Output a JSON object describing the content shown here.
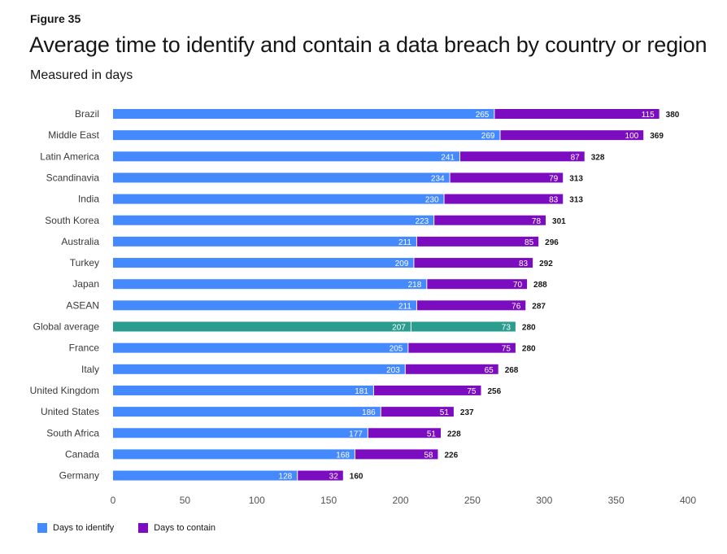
{
  "figure_label": "Figure 35",
  "chart_data": {
    "type": "bar",
    "orientation": "horizontal",
    "stacked": true,
    "title": "Average time to identify and contain a data breach by country or region",
    "subtitle": "Measured in days",
    "categories": [
      "Brazil",
      "Middle East",
      "Latin America",
      "Scandinavia",
      "India",
      "South Korea",
      "Australia",
      "Turkey",
      "Japan",
      "ASEAN",
      "Global average",
      "France",
      "Italy",
      "United Kingdom",
      "United States",
      "South Africa",
      "Canada",
      "Germany"
    ],
    "series": [
      {
        "name": "Days to identify",
        "color": "#4589ff",
        "values": [
          265,
          269,
          241,
          234,
          230,
          223,
          211,
          209,
          218,
          211,
          207,
          205,
          203,
          181,
          186,
          177,
          168,
          128
        ]
      },
      {
        "name": "Days to contain",
        "color": "#7c0cc0",
        "values": [
          115,
          100,
          87,
          79,
          83,
          78,
          85,
          83,
          70,
          76,
          73,
          75,
          65,
          75,
          51,
          51,
          58,
          32
        ]
      }
    ],
    "totals": [
      380,
      369,
      328,
      313,
      313,
      301,
      296,
      292,
      288,
      287,
      280,
      280,
      268,
      256,
      237,
      228,
      226,
      160
    ],
    "highlight_category": "Global average",
    "highlight_color": "#2a9d8f",
    "xlim": [
      0,
      400
    ],
    "xticks": [
      0,
      50,
      100,
      150,
      200,
      250,
      300,
      350,
      400
    ],
    "legend_position": "bottom-left",
    "grid": false
  }
}
